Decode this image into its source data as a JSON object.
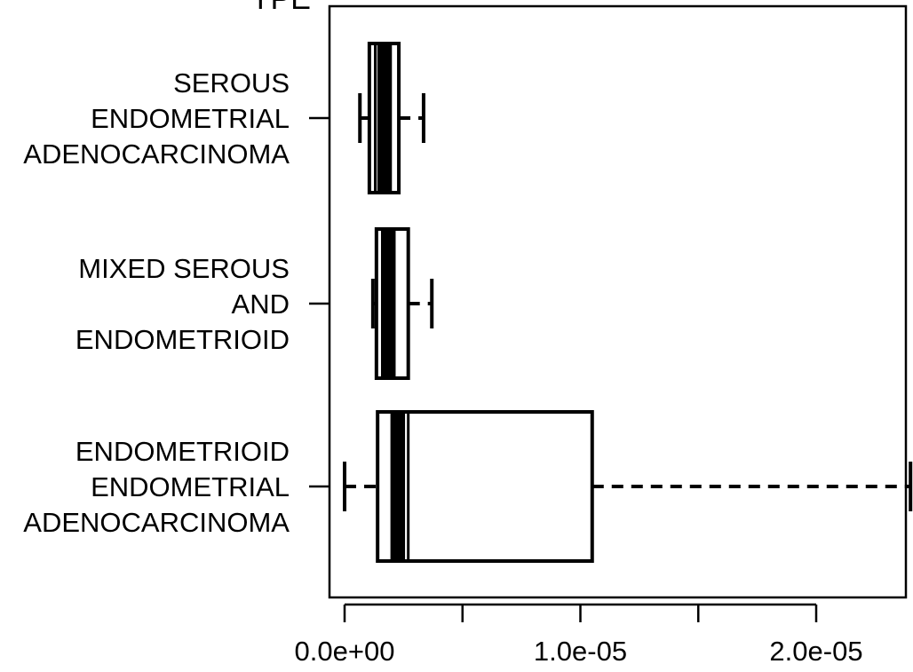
{
  "chart_data": {
    "type": "boxplot",
    "orientation": "horizontal",
    "title_fragment": "YPE",
    "categories": [
      {
        "lines": [
          "SEROUS",
          "ENDOMETRIAL",
          "ADENOCARCINOMA"
        ]
      },
      {
        "lines": [
          "MIXED SEROUS",
          "AND",
          "ENDOMETRIOID"
        ]
      },
      {
        "lines": [
          "ENDOMETRIOID",
          "ENDOMETRIAL",
          "ADENOCARCINOMA"
        ]
      }
    ],
    "boxes": [
      {
        "whisker_low": 6.5e-07,
        "q1": 1.05e-06,
        "q1_inner": 1.3e-06,
        "median": 1.65e-06,
        "q3": 1.95e-06,
        "q3_outer": 2.3e-06,
        "whisker_high": 3.35e-06
      },
      {
        "whisker_low": 1.2e-06,
        "q1": 1.35e-06,
        "q1_inner": 1.6e-06,
        "median": 1.9e-06,
        "q3": 2.1e-06,
        "q3_outer": 2.7e-06,
        "whisker_high": 3.7e-06
      },
      {
        "whisker_low": 0.0,
        "q1": 1.4e-06,
        "q1_inner": 2e-06,
        "median": 2.3e-06,
        "q3": 2.7e-06,
        "q3_outer": 1.05e-05,
        "whisker_high": 2.4e-05
      }
    ],
    "xticks": [
      0.0,
      5e-06,
      1e-05,
      1.5e-05,
      2e-05
    ],
    "xtick_labels": [
      "0.0e+00",
      "",
      "1.0e-05",
      "",
      "2.0e-05"
    ],
    "xlim": [
      -6e-07,
      2.45e-05
    ],
    "grid": false
  }
}
